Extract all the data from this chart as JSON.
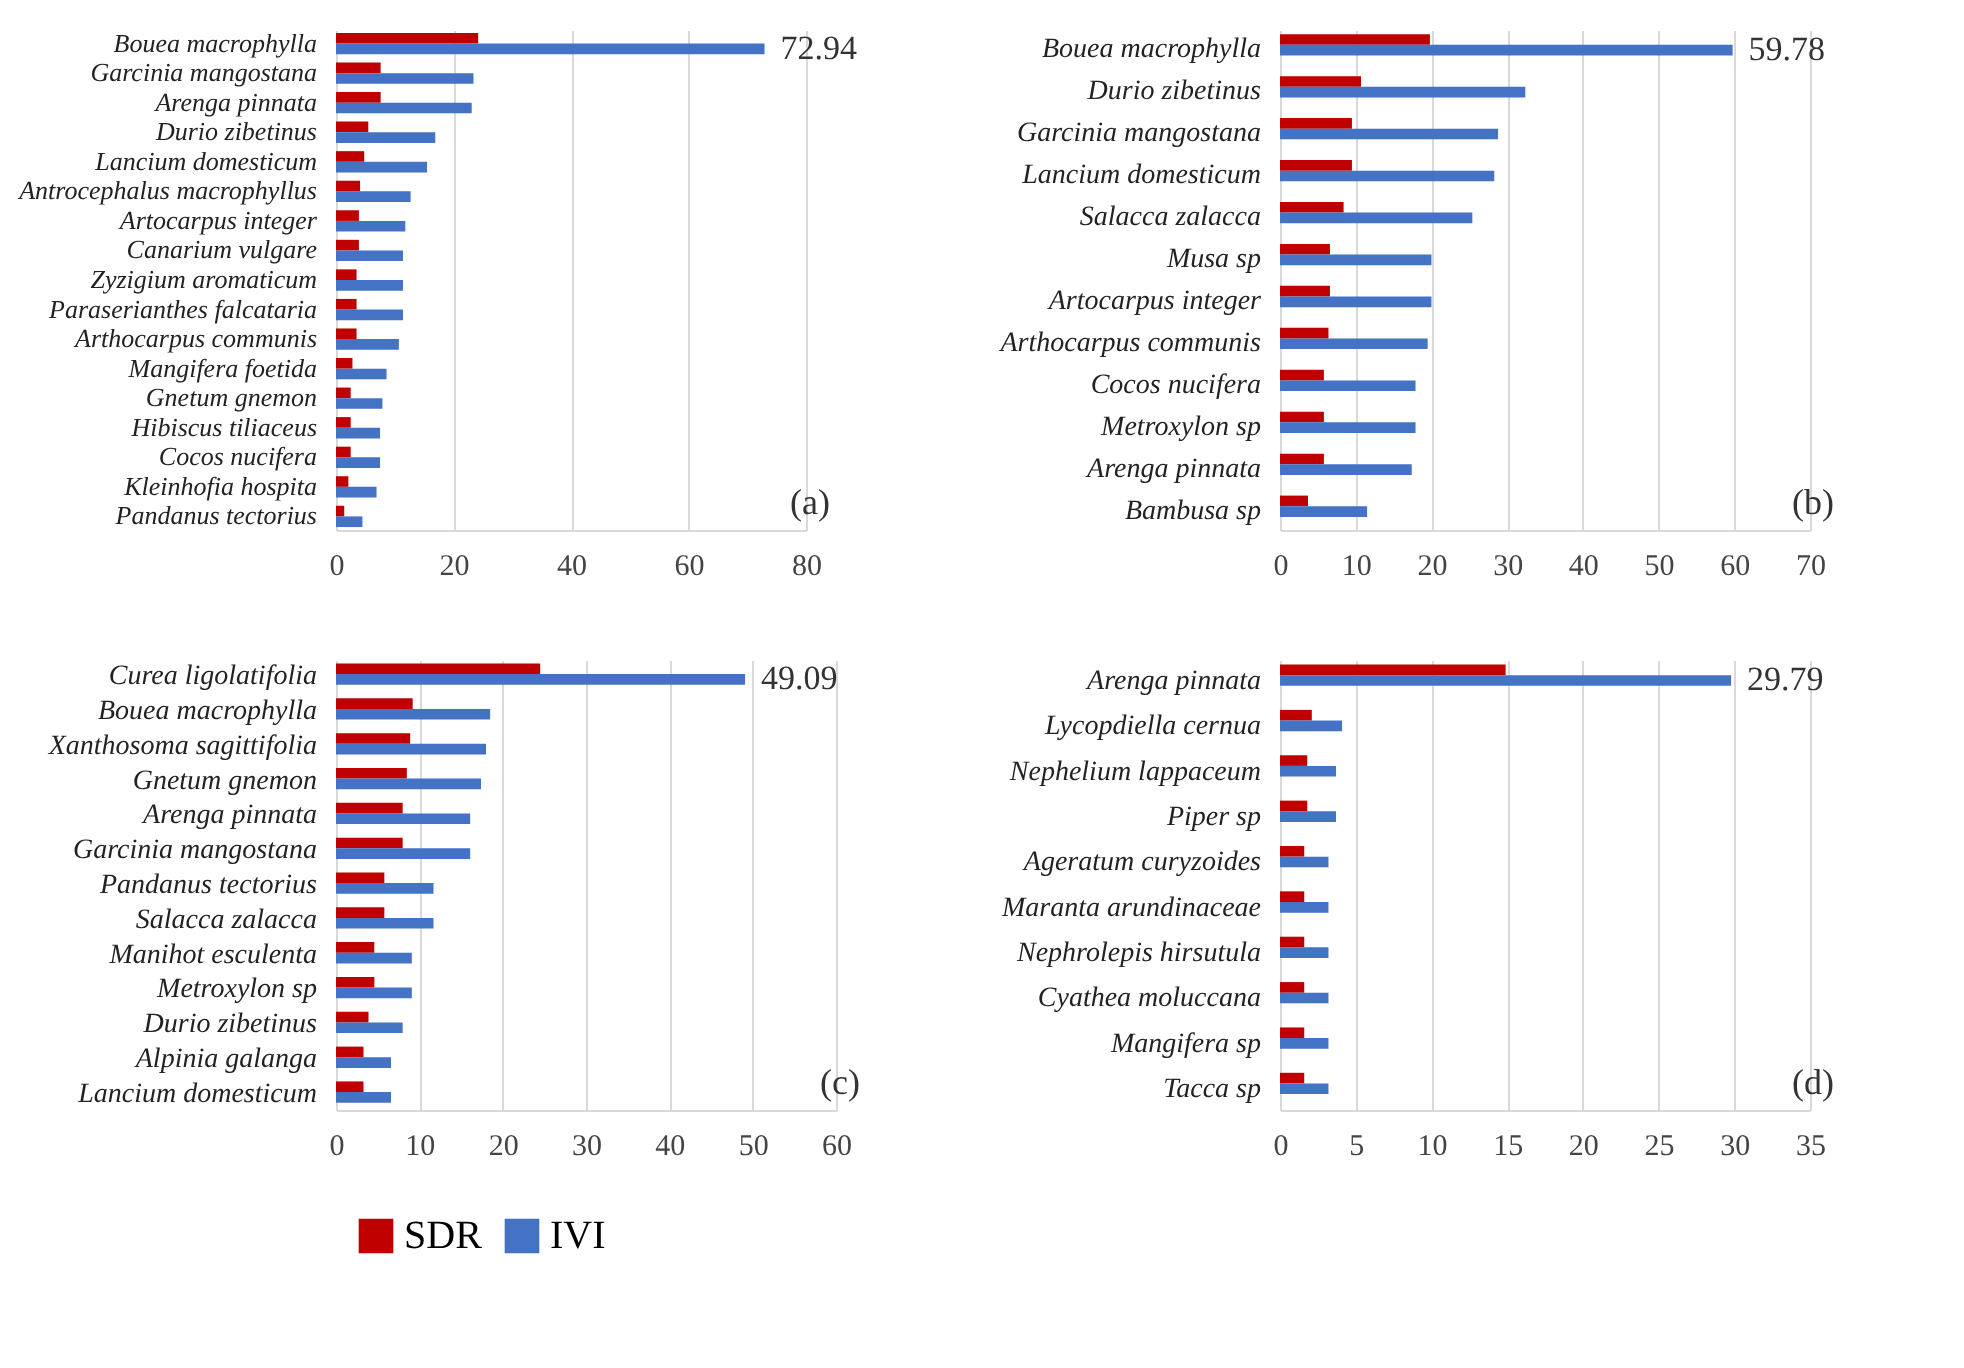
{
  "chart_data": [
    {
      "type": "bar",
      "orientation": "horizontal",
      "categories": [
        "Bouea macrophylla",
        "Garcinia mangostana",
        "Arenga pinnata",
        "Durio zibetinus",
        "Lancium domesticum",
        "Antrocephalus macrophyllus",
        "Artocarpus integer",
        "Canarium vulgare",
        "Zyzigium aromaticum",
        "Paraserianthes falcataria",
        "Arthocarpus communis",
        "Mangifera foetida",
        "Gnetum gnemon",
        "Hibiscus tiliaceus",
        "Cocos nucifera",
        "Kleinhofia hospita",
        "Pandanus tectorius"
      ],
      "series": [
        {
          "name": "SDR",
          "color": "#c00000",
          "values": [
            24.2,
            7.6,
            7.6,
            5.5,
            4.8,
            4.1,
            3.9,
            3.9,
            3.5,
            3.5,
            3.5,
            2.8,
            2.5,
            2.5,
            2.5,
            2.1,
            1.4
          ]
        },
        {
          "name": "IVI",
          "color": "#4472c4",
          "values": [
            72.94,
            23.4,
            23.1,
            16.9,
            15.5,
            12.7,
            11.8,
            11.4,
            11.4,
            11.4,
            10.7,
            8.6,
            7.9,
            7.5,
            7.5,
            6.9,
            4.5
          ],
          "value_labels": [
            "72.94",
            null,
            null,
            null,
            null,
            null,
            null,
            null,
            null,
            null,
            null,
            null,
            null,
            null,
            null,
            null,
            null
          ]
        }
      ],
      "xlim": [
        0,
        80
      ],
      "xticks": [
        0,
        20,
        40,
        60,
        80
      ],
      "grid": "x",
      "legend": "bottom",
      "annotations": [
        "(a)"
      ]
    },
    {
      "type": "bar",
      "orientation": "horizontal",
      "categories": [
        "Bouea macrophylla",
        "Durio zibetinus",
        "Garcinia mangostana",
        "Lancium domesticum",
        "Salacca zalacca",
        "Musa sp",
        "Artocarpus integer",
        "Arthocarpus communis",
        "Cocos nucifera",
        "Metroxylon sp",
        "Arenga pinnata",
        "Bambusa sp"
      ],
      "series": [
        {
          "name": "SDR",
          "color": "#c00000",
          "values": [
            19.8,
            10.7,
            9.5,
            9.5,
            8.4,
            6.6,
            6.6,
            6.4,
            5.8,
            5.8,
            5.8,
            3.7
          ]
        },
        {
          "name": "IVI",
          "color": "#4472c4",
          "values": [
            59.78,
            32.4,
            28.8,
            28.3,
            25.4,
            20.0,
            20.0,
            19.5,
            17.9,
            17.9,
            17.4,
            11.5
          ],
          "value_labels": [
            "59.78",
            null,
            null,
            null,
            null,
            null,
            null,
            null,
            null,
            null,
            null,
            null
          ]
        }
      ],
      "xlim": [
        0,
        70
      ],
      "xticks": [
        0,
        10,
        20,
        30,
        40,
        50,
        60,
        70
      ],
      "grid": "x",
      "legend": "bottom",
      "annotations": [
        "(b)"
      ]
    },
    {
      "type": "bar",
      "orientation": "horizontal",
      "categories": [
        "Curea ligolatifolia",
        "Bouea macrophylla",
        "Xanthosoma sagittifolia",
        "Gnetum gnemon",
        "Arenga pinnata",
        "Garcinia mangostana",
        "Pandanus tectorius",
        "Salacca zalacca",
        "Manihot esculenta",
        "Metroxylon sp",
        "Durio zibetinus",
        "Alpinia galanga",
        "Lancium domesticum"
      ],
      "series": [
        {
          "name": "SDR",
          "color": "#c00000",
          "values": [
            24.5,
            9.2,
            8.9,
            8.5,
            8.0,
            8.0,
            5.8,
            5.8,
            4.6,
            4.6,
            3.9,
            3.3,
            3.3
          ]
        },
        {
          "name": "IVI",
          "color": "#4472c4",
          "values": [
            49.09,
            18.5,
            18.0,
            17.4,
            16.1,
            16.1,
            11.7,
            11.7,
            9.1,
            9.1,
            8.0,
            6.6,
            6.6
          ],
          "value_labels": [
            "49.09",
            null,
            null,
            null,
            null,
            null,
            null,
            null,
            null,
            null,
            null,
            null,
            null
          ]
        }
      ],
      "xlim": [
        0,
        60
      ],
      "xticks": [
        0,
        10,
        20,
        30,
        40,
        50,
        60
      ],
      "grid": "x",
      "legend": "bottom",
      "annotations": [
        "(c)"
      ]
    },
    {
      "type": "bar",
      "orientation": "horizontal",
      "categories": [
        "Arenga pinnata",
        "Lycopdiella cernua",
        "Nephelium lappaceum",
        "Piper sp",
        "Ageratum curyzoides",
        "Maranta arundinaceae",
        "Nephrolepis hirsutula",
        "Cyathea moluccana",
        "Mangifera sp",
        "Tacca sp"
      ],
      "series": [
        {
          "name": "SDR",
          "color": "#c00000",
          "values": [
            14.9,
            2.1,
            1.8,
            1.8,
            1.6,
            1.6,
            1.6,
            1.6,
            1.6,
            1.6
          ]
        },
        {
          "name": "IVI",
          "color": "#4472c4",
          "values": [
            29.79,
            4.1,
            3.7,
            3.7,
            3.2,
            3.2,
            3.2,
            3.2,
            3.2,
            3.2
          ],
          "value_labels": [
            "29.79",
            null,
            null,
            null,
            null,
            null,
            null,
            null,
            null,
            null
          ]
        }
      ],
      "xlim": [
        0,
        35
      ],
      "xticks": [
        0,
        5,
        10,
        15,
        20,
        25,
        30,
        35
      ],
      "grid": "x",
      "legend": "bottom",
      "annotations": [
        "(d)"
      ]
    }
  ]
}
